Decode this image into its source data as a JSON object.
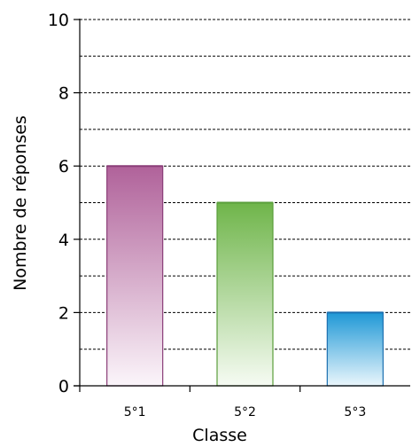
{
  "chart_data": {
    "type": "bar",
    "categories": [
      "5°1",
      "5°2",
      "5°3"
    ],
    "values": [
      6,
      5,
      2
    ],
    "xlabel": "Classe",
    "ylabel": "Nombre de réponses",
    "ylim": [
      0,
      10
    ],
    "y_ticks": [
      "0",
      "2",
      "4",
      "6",
      "8",
      "10"
    ],
    "grid": "horizontal dashed",
    "colors": [
      {
        "top": "#b0629a",
        "bottom": "#fbf5fa",
        "stroke": "#8a3d78"
      },
      {
        "top": "#6fb54a",
        "bottom": "#f6fbf3",
        "stroke": "#5a9e3b"
      },
      {
        "top": "#1f98d6",
        "bottom": "#eaf6fc",
        "stroke": "#1a6fb0"
      }
    ]
  }
}
